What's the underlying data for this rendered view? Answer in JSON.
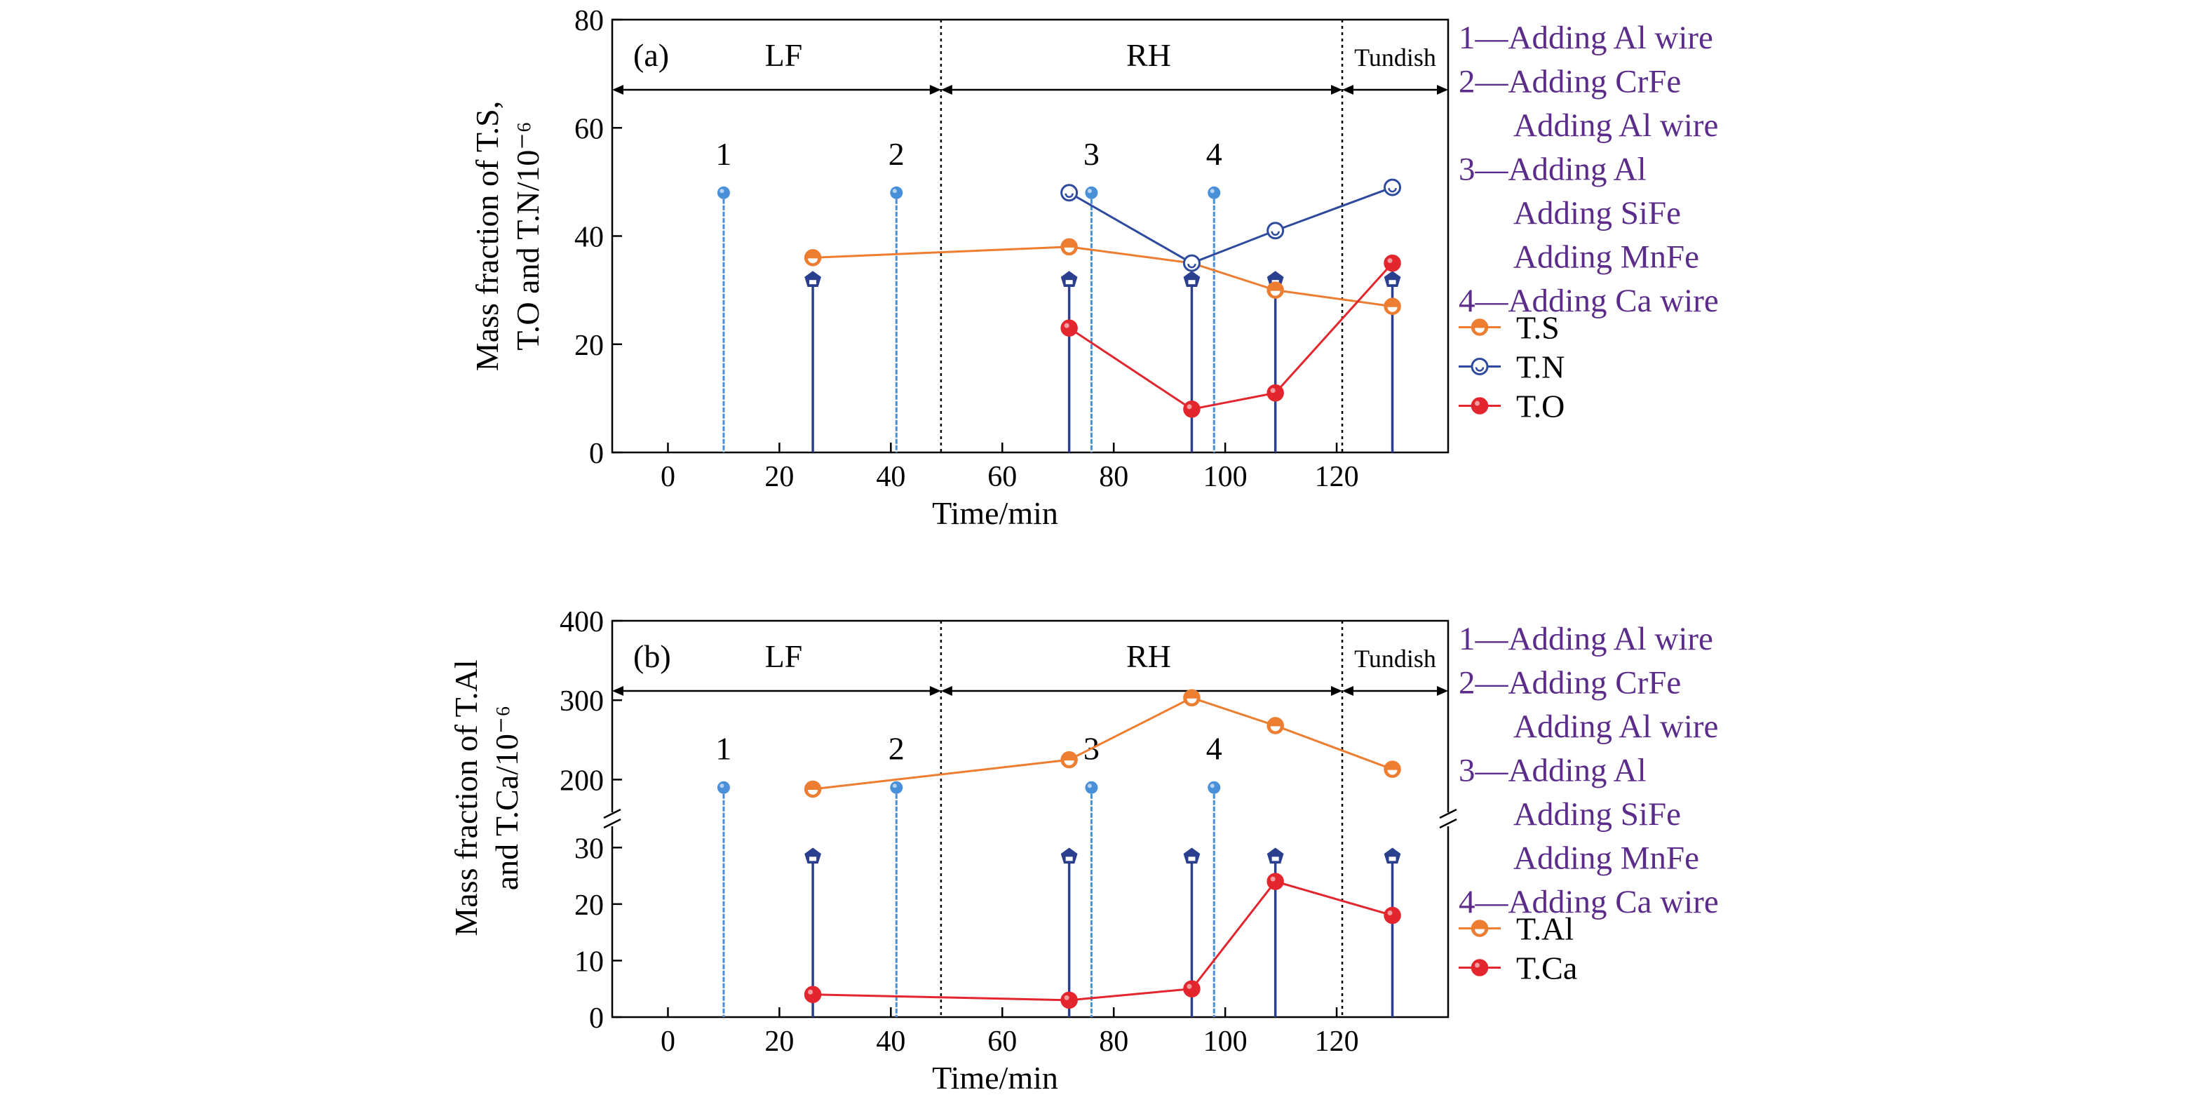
{
  "colors": {
    "ts": "#ED7D31",
    "tn": "#2E4A9E",
    "to": "#E3262E",
    "event": "#4A90D9",
    "sample": "#2B3F8F",
    "annotation": "#5B2C8A",
    "axis": "#000000"
  },
  "icons": {
    "sample_marker": "pentagon",
    "event_marker": "dot"
  },
  "annotations": {
    "items": [
      {
        "num": "1",
        "lines": [
          "Adding Al wire"
        ]
      },
      {
        "num": "2",
        "lines": [
          "Adding CrFe",
          "Adding Al wire"
        ]
      },
      {
        "num": "3",
        "lines": [
          "Adding Al",
          "Adding SiFe",
          "Adding MnFe"
        ]
      },
      {
        "num": "4",
        "lines": [
          "Adding Ca wire"
        ]
      }
    ]
  },
  "chart_data": [
    {
      "type": "line",
      "panel_label": "(a)",
      "xlabel": "Time/min",
      "ylabel_lines": [
        "Mass fraction of T.S,",
        "T.O and T.N/10⁻⁶"
      ],
      "xlim": [
        -10,
        140
      ],
      "ylim": [
        0,
        80
      ],
      "xticks": [
        0,
        20,
        40,
        60,
        80,
        100,
        120
      ],
      "yticks": [
        0,
        20,
        40,
        60,
        80
      ],
      "stages": [
        {
          "name": "LF",
          "start": -10,
          "end": 49
        },
        {
          "name": "RH",
          "start": 49,
          "end": 121
        },
        {
          "name": "Tundish",
          "start": 121,
          "end": 140
        }
      ],
      "events": [
        {
          "label": "1",
          "x": 10,
          "y": 48
        },
        {
          "label": "2",
          "x": 41,
          "y": 48
        },
        {
          "label": "3",
          "x": 76,
          "y": 48
        },
        {
          "label": "4",
          "x": 98,
          "y": 48
        }
      ],
      "samples": [
        {
          "x": 26,
          "y": 32
        },
        {
          "x": 72,
          "y": 32
        },
        {
          "x": 94,
          "y": 32
        },
        {
          "x": 109,
          "y": 32
        },
        {
          "x": 130,
          "y": 32
        }
      ],
      "series": [
        {
          "name": "T.S",
          "color_key": "ts",
          "marker": "half",
          "x": [
            26,
            72,
            94,
            109,
            130
          ],
          "values": [
            36,
            38,
            35,
            30,
            27
          ]
        },
        {
          "name": "T.N",
          "color_key": "tn",
          "marker": "open",
          "x": [
            72,
            94,
            109,
            130
          ],
          "values": [
            48,
            35,
            41,
            49
          ]
        },
        {
          "name": "T.O",
          "color_key": "to",
          "marker": "filled",
          "x": [
            72,
            94,
            109,
            130
          ],
          "values": [
            23,
            8,
            11,
            35
          ]
        }
      ]
    },
    {
      "type": "line",
      "panel_label": "(b)",
      "xlabel": "Time/min",
      "ylabel_lines": [
        "Mass fraction of T.Al",
        "and T.Ca/10⁻⁶"
      ],
      "xlim": [
        -10,
        140
      ],
      "broken_axis": {
        "upper": {
          "ylim": [
            150,
            400
          ],
          "ticks": [
            200,
            300,
            400
          ]
        },
        "lower": {
          "ylim": [
            0,
            35
          ],
          "ticks": [
            0,
            10,
            20,
            30
          ]
        }
      },
      "xticks": [
        0,
        20,
        40,
        60,
        80,
        100,
        120
      ],
      "stages": [
        {
          "name": "LF",
          "start": -10,
          "end": 49
        },
        {
          "name": "RH",
          "start": 49,
          "end": 121
        },
        {
          "name": "Tundish",
          "start": 121,
          "end": 140
        }
      ],
      "events": [
        {
          "label": "1",
          "x": 10,
          "y": 190
        },
        {
          "label": "2",
          "x": 41,
          "y": 190
        },
        {
          "label": "3",
          "x": 76,
          "y": 190
        },
        {
          "label": "4",
          "x": 98,
          "y": 190
        }
      ],
      "samples": [
        {
          "x": 26,
          "y": 28.5
        },
        {
          "x": 72,
          "y": 28.5
        },
        {
          "x": 94,
          "y": 28.5
        },
        {
          "x": 109,
          "y": 28.5
        },
        {
          "x": 130,
          "y": 28.5
        }
      ],
      "series": [
        {
          "name": "T.Al",
          "color_key": "ts",
          "marker": "half",
          "x": [
            26,
            72,
            94,
            109,
            130
          ],
          "values": [
            188,
            225,
            303,
            268,
            213
          ]
        },
        {
          "name": "T.Ca",
          "color_key": "to",
          "marker": "filled",
          "x": [
            26,
            72,
            94,
            109,
            130
          ],
          "values": [
            4,
            3,
            5,
            24,
            18
          ]
        }
      ]
    }
  ]
}
